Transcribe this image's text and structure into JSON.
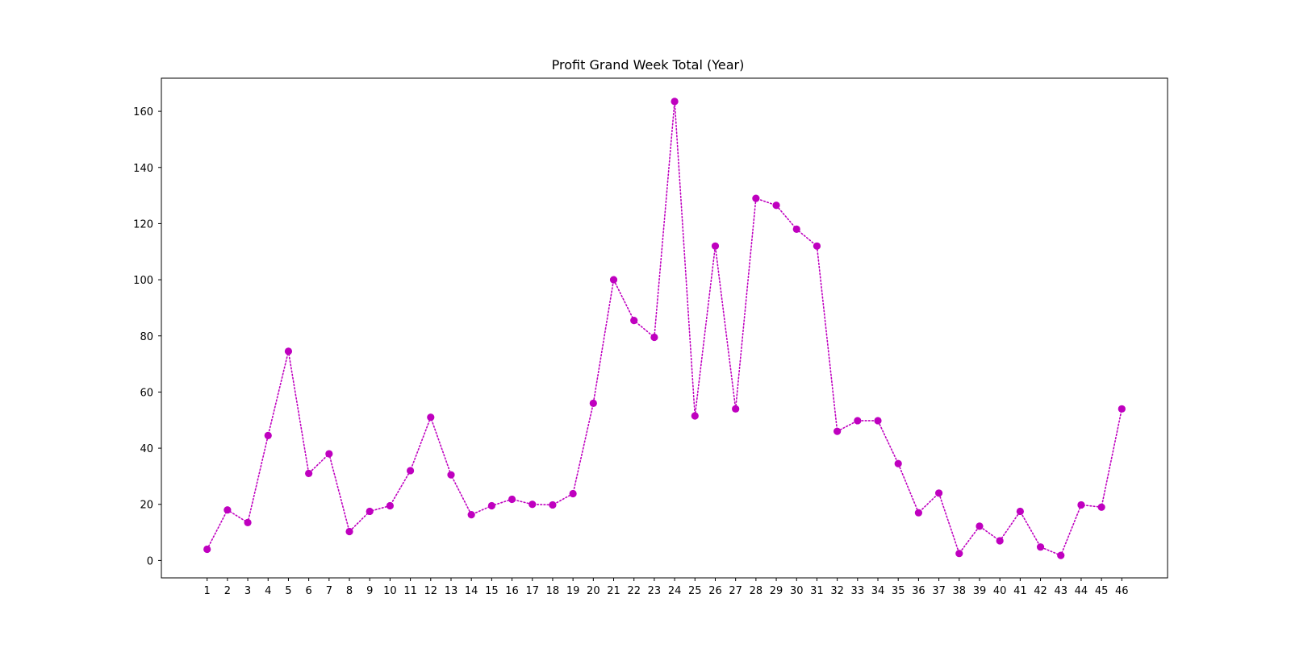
{
  "chart_data": {
    "type": "line",
    "title": "Profit Grand Week Total (Year)",
    "xlabel": "",
    "ylabel": "",
    "x": [
      1,
      2,
      3,
      4,
      5,
      6,
      7,
      8,
      9,
      10,
      11,
      12,
      13,
      14,
      15,
      16,
      17,
      18,
      19,
      20,
      21,
      22,
      23,
      24,
      25,
      26,
      27,
      28,
      29,
      30,
      31,
      32,
      33,
      34,
      35,
      36,
      37,
      38,
      39,
      40,
      41,
      42,
      43,
      44,
      45,
      46
    ],
    "xticks": [
      "1",
      "2",
      "3",
      "4",
      "5",
      "6",
      "7",
      "8",
      "9",
      "10",
      "11",
      "12",
      "13",
      "14",
      "15",
      "16",
      "17",
      "18",
      "19",
      "20",
      "21",
      "22",
      "23",
      "24",
      "25",
      "26",
      "27",
      "28",
      "29",
      "30",
      "31",
      "32",
      "33",
      "34",
      "35",
      "36",
      "37",
      "38",
      "39",
      "40",
      "41",
      "42",
      "43",
      "44",
      "45",
      "46"
    ],
    "series": [
      {
        "values": [
          4,
          18,
          13.5,
          44.5,
          74.5,
          31,
          38,
          10.3,
          17.5,
          19.5,
          32,
          51,
          30.5,
          16.3,
          19.5,
          21.8,
          20,
          19.8,
          23.8,
          56,
          100,
          85.5,
          79.5,
          163.5,
          51.5,
          112,
          54,
          129,
          126.5,
          118,
          112,
          46,
          49.8,
          49.8,
          34.5,
          17,
          24,
          2.5,
          12.2,
          7,
          17.5,
          4.8,
          1.8,
          19.8,
          19,
          54
        ],
        "color": "#bf00bf"
      }
    ],
    "yticks": [
      0,
      20,
      40,
      60,
      80,
      100,
      120,
      140,
      160
    ],
    "xlim": [
      -1.25,
      48.25
    ],
    "ylim": [
      -6.2,
      171.8
    ],
    "grid": false,
    "legend": "none",
    "line_style": "dotted",
    "marker": "circle"
  }
}
